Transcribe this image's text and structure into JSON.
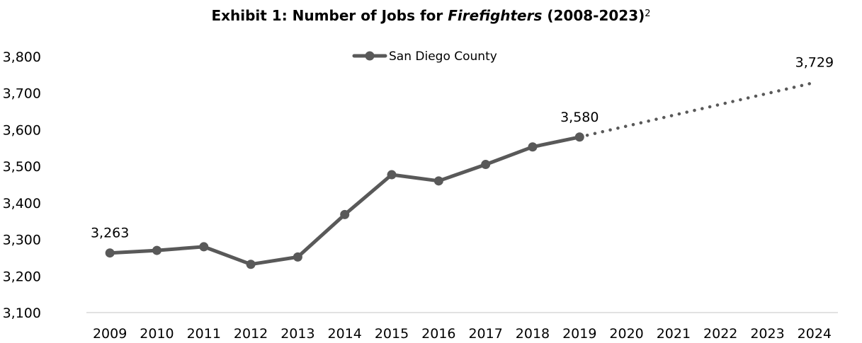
{
  "chart_title": {
    "part1": "Exhibit 1: Number of Jobs for ",
    "part2": "Firefighters",
    "part3": " (2008-2023)",
    "sup": "2"
  },
  "chart_data": {
    "type": "line",
    "title": "Exhibit 1: Number of Jobs for Firefighters (2008-2023)",
    "xlabel": "",
    "ylabel": "",
    "x": [
      "2009",
      "2010",
      "2011",
      "2012",
      "2013",
      "2014",
      "2015",
      "2016",
      "2017",
      "2018",
      "2019",
      "2020",
      "2021",
      "2022",
      "2023",
      "2024"
    ],
    "ylim": [
      3100,
      3800
    ],
    "y_ticks": [
      3100,
      3200,
      3300,
      3400,
      3500,
      3600,
      3700,
      3800
    ],
    "y_tick_labels": [
      "3,100",
      "3,200",
      "3,300",
      "3,400",
      "3,500",
      "3,600",
      "3,700",
      "3,800"
    ],
    "grid": false,
    "legend_position": "top-center",
    "series": [
      {
        "name": "San Diego County",
        "color": "#595959",
        "values": [
          3263,
          3270,
          3280,
          3232,
          3252,
          3368,
          3477,
          3460,
          3505,
          3553,
          3580,
          null,
          null,
          null,
          null,
          null
        ]
      }
    ],
    "projection": {
      "style": "dotted",
      "color": "#595959",
      "from": "2019",
      "to": "2024",
      "from_value": 3580,
      "to_value": 3729
    },
    "data_labels": [
      {
        "x": "2009",
        "value": 3263,
        "text": "3,263"
      },
      {
        "x": "2019",
        "value": 3580,
        "text": "3,580"
      },
      {
        "x": "2024",
        "value": 3729,
        "text": "3,729"
      }
    ]
  }
}
